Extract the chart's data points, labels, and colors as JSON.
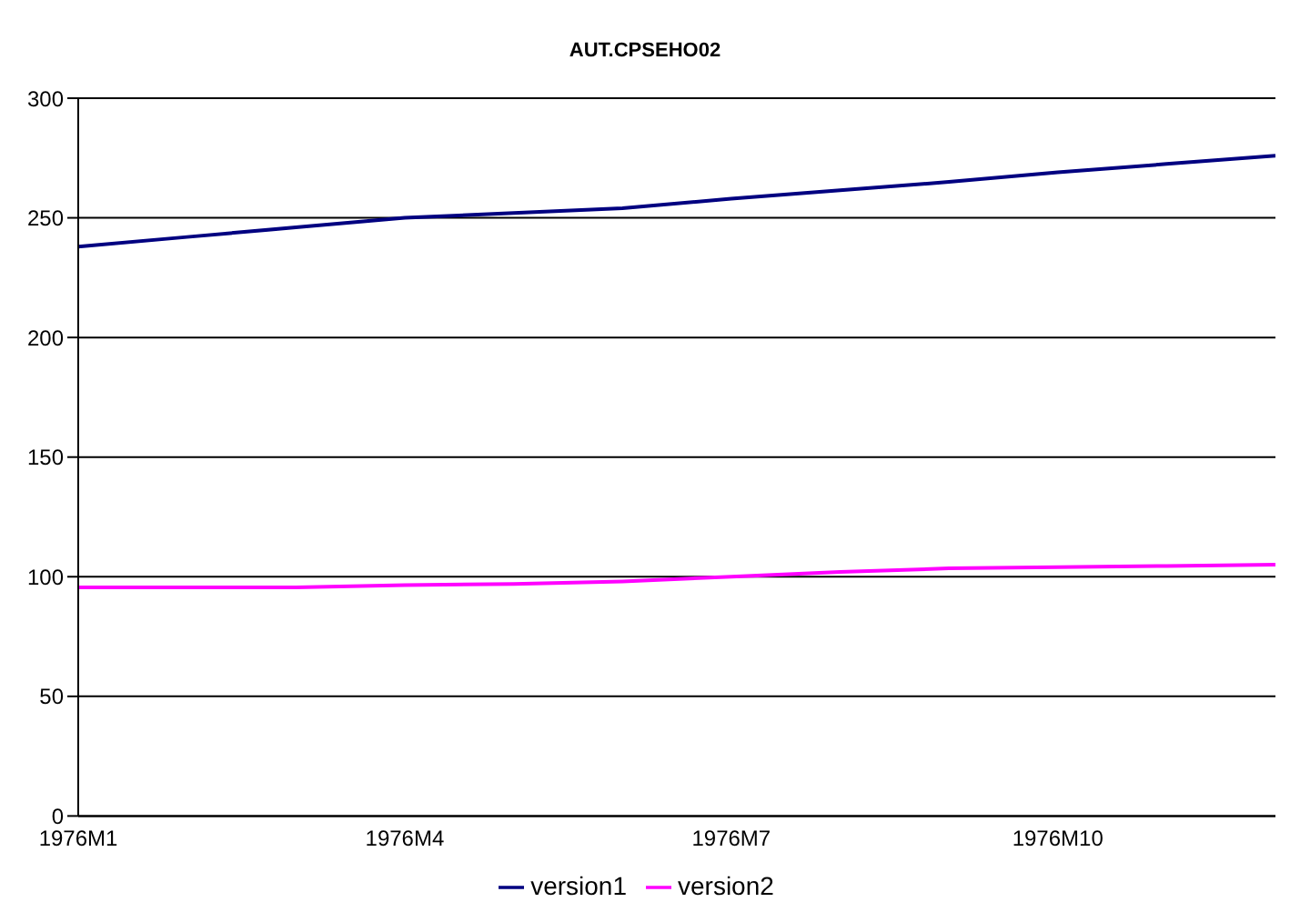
{
  "chart_data": {
    "type": "line",
    "title": "AUT.CPSEHO02",
    "categories": [
      "1976M1",
      null,
      null,
      "1976M4",
      null,
      null,
      "1976M7",
      null,
      null,
      "1976M10",
      null,
      null
    ],
    "series": [
      {
        "name": "version1",
        "color": "#000080",
        "values": [
          238,
          242,
          246,
          250,
          252,
          254,
          258,
          261.5,
          265,
          269,
          272.5,
          276
        ]
      },
      {
        "name": "version2",
        "color": "#ff00ff",
        "values": [
          95.5,
          95.5,
          95.5,
          96.5,
          97,
          98,
          100,
          102,
          103.5,
          104,
          104.5,
          105
        ]
      }
    ],
    "ylim": [
      0,
      300
    ],
    "yticks": [
      0,
      50,
      100,
      150,
      200,
      250,
      300
    ],
    "grid": "y",
    "legend": "bottom",
    "marker": "none",
    "line_style": "solid"
  }
}
